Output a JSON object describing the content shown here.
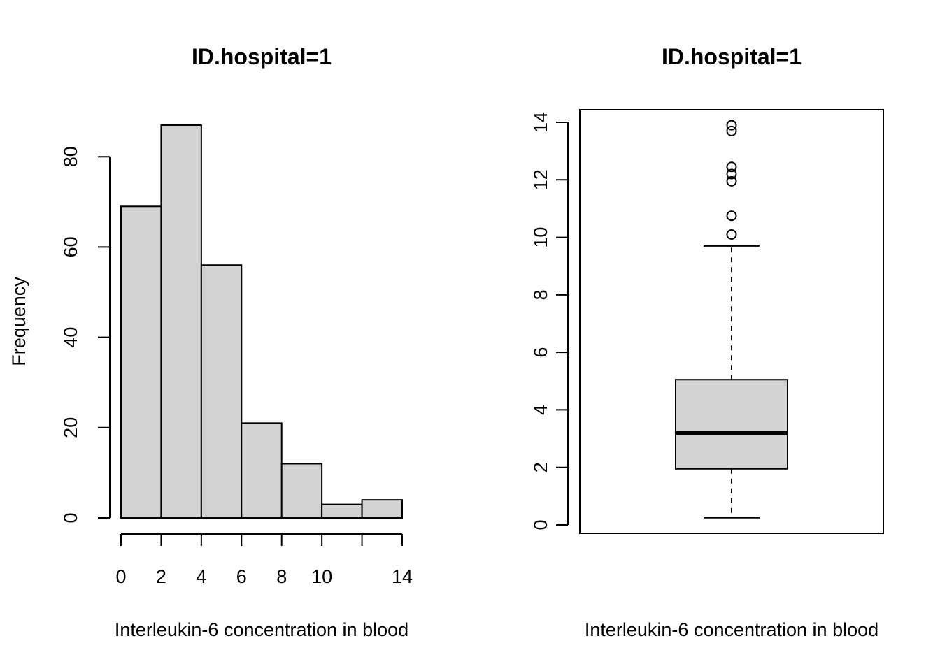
{
  "chart_data": [
    {
      "type": "histogram",
      "title": "ID.hospital=1",
      "xlabel": "Interleukin-6 concentration in blood",
      "ylabel": "Frequency",
      "bins": [
        {
          "x0": 0,
          "x1": 2,
          "count": 69
        },
        {
          "x0": 2,
          "x1": 4,
          "count": 87
        },
        {
          "x0": 4,
          "x1": 6,
          "count": 56
        },
        {
          "x0": 6,
          "x1": 8,
          "count": 21
        },
        {
          "x0": 8,
          "x1": 10,
          "count": 12
        },
        {
          "x0": 10,
          "x1": 12,
          "count": 3
        },
        {
          "x0": 12,
          "x1": 14,
          "count": 4
        }
      ],
      "xticks": [
        0,
        2,
        4,
        6,
        8,
        10,
        14
      ],
      "yticks": [
        0,
        20,
        40,
        60,
        80
      ],
      "xlim": [
        0,
        14
      ],
      "ylim": [
        0,
        87
      ],
      "bar_color": "#d3d3d3",
      "grid": false
    },
    {
      "type": "boxplot",
      "title": "ID.hospital=1",
      "xlabel": "Interleukin-6 concentration in blood",
      "ylabel": "",
      "box": {
        "whisker_low": 0.25,
        "q1": 1.95,
        "median": 3.2,
        "q3": 5.05,
        "whisker_high": 9.7
      },
      "outliers": [
        10.1,
        10.75,
        11.95,
        12.2,
        12.45,
        13.7,
        13.9
      ],
      "yticks": [
        0,
        2,
        4,
        6,
        8,
        10,
        12,
        14
      ],
      "ylim": [
        0,
        14
      ],
      "box_color": "#d3d3d3",
      "grid": false
    }
  ]
}
